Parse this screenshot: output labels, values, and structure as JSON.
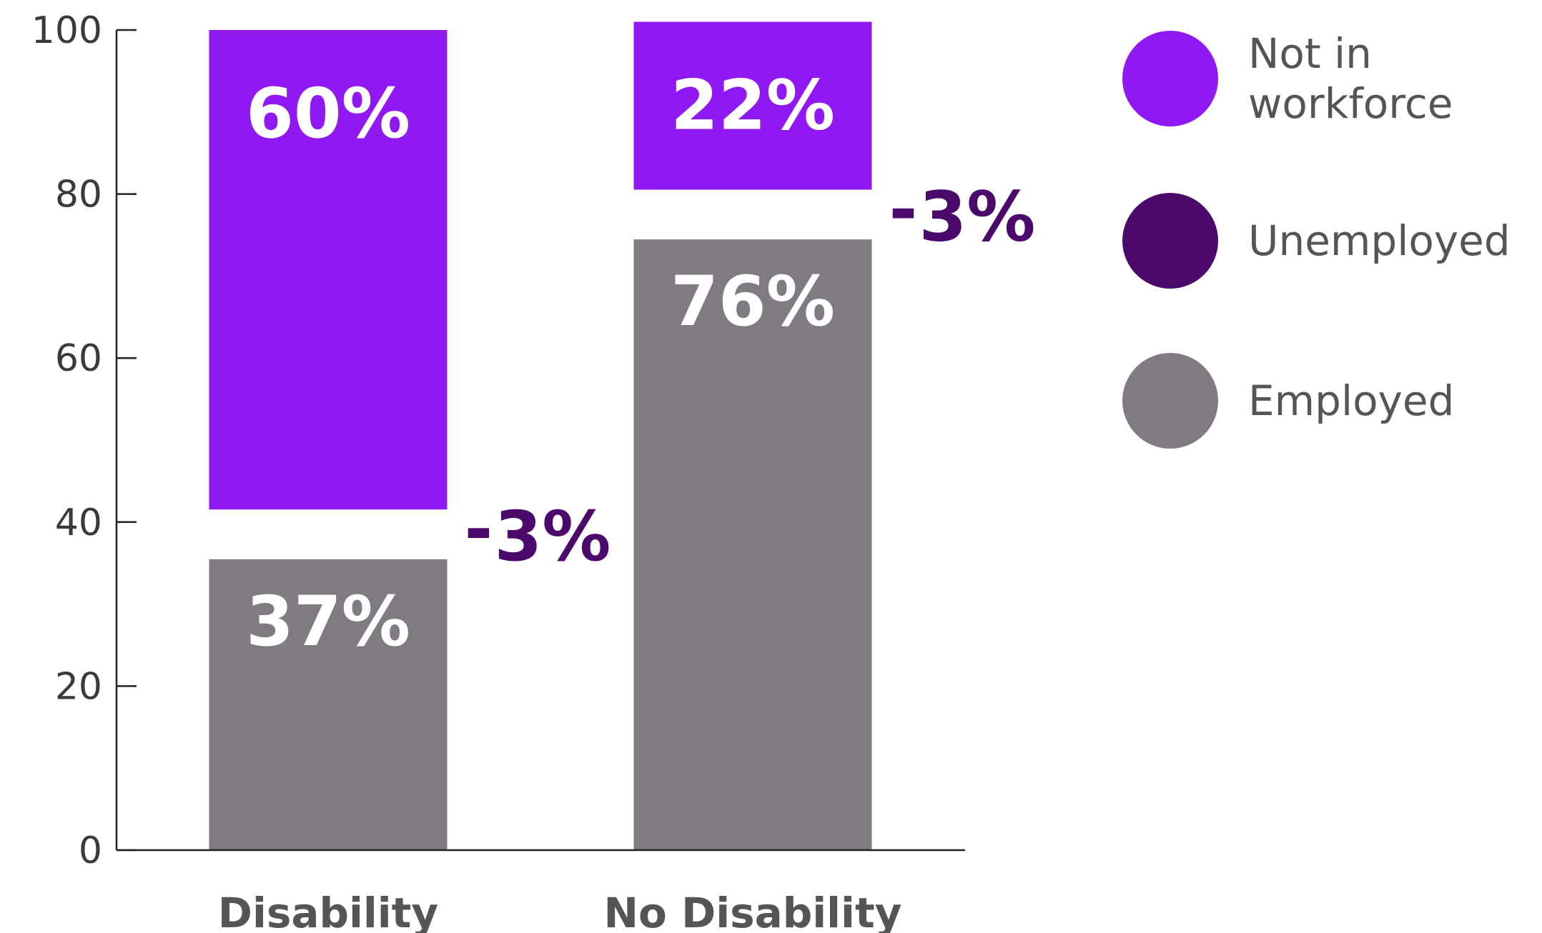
{
  "chart_data": {
    "type": "bar",
    "stacked": true,
    "categories": [
      "Disability",
      "No Disability"
    ],
    "series": [
      {
        "name": "Employed",
        "values": [
          37,
          76
        ],
        "labels": [
          "37%",
          "76%"
        ],
        "color": "#807a83"
      },
      {
        "name": "Unemployed",
        "values": [
          3,
          3
        ],
        "labels": [
          "3%",
          "3%"
        ],
        "color": "#4b0a6b"
      },
      {
        "name": "Not in workforce",
        "values": [
          60,
          22
        ],
        "labels": [
          "60%",
          "22%"
        ],
        "color": "#9018f3"
      }
    ],
    "yticks": [
      0,
      20,
      40,
      60,
      80,
      100
    ],
    "ylim": [
      0,
      100
    ],
    "callout_prefix": "-",
    "callout_color": "#4b0a6b",
    "legend_position": "right",
    "legend": [
      {
        "label": "Not in workforce",
        "color": "#9018f3"
      },
      {
        "label": "Unemployed",
        "color": "#4b0a6b"
      },
      {
        "label": "Employed",
        "color": "#807a83"
      }
    ],
    "title": "",
    "xlabel": "",
    "ylabel": ""
  }
}
